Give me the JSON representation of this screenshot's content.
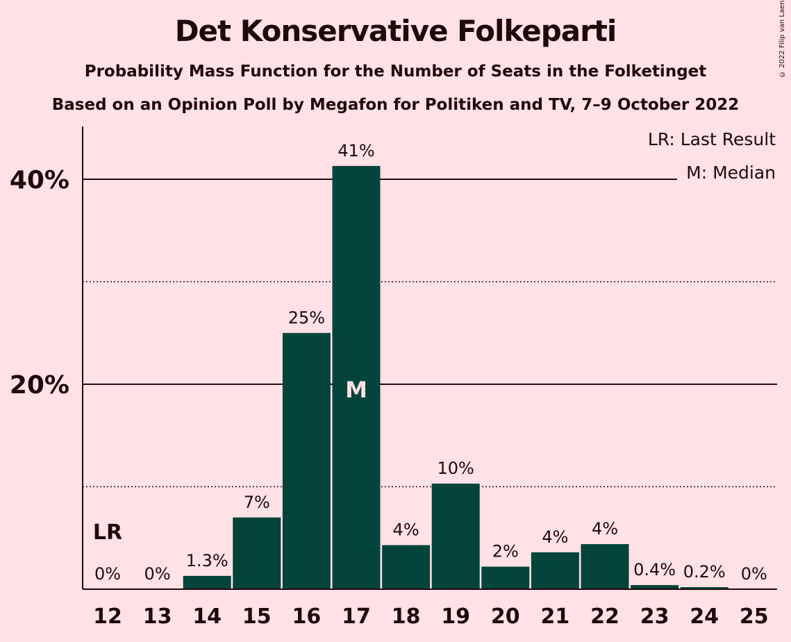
{
  "header": {
    "title": "Det Konservative Folkeparti",
    "subtitle1": "Probability Mass Function for the Number of Seats in the Folketinget",
    "subtitle2": "Based on an Opinion Poll by Megafon for Politiken and TV, 7–9 October 2022",
    "copyright": "© 2022 Filip van Laenen"
  },
  "legend": {
    "last_result": "LR: Last Result",
    "median": "M: Median"
  },
  "colors": {
    "background": "#FFE1E6",
    "bar": "#04443A",
    "text": "#1F0A0A"
  },
  "chart_data": {
    "type": "bar",
    "categories": [
      "12",
      "13",
      "14",
      "15",
      "16",
      "17",
      "18",
      "19",
      "20",
      "21",
      "22",
      "23",
      "24",
      "25"
    ],
    "values": [
      0,
      0,
      1.3,
      7,
      25,
      41.3,
      4.3,
      10.3,
      2.2,
      3.6,
      4.4,
      0.4,
      0.2,
      0
    ],
    "data_labels": [
      "0%",
      "0%",
      "1.3%",
      "7%",
      "25%",
      "41%",
      "4%",
      "10%",
      "2%",
      "4%",
      "4%",
      "0.4%",
      "0.2%",
      "0%"
    ],
    "y_ticks": [
      {
        "value": 20,
        "label": "20%"
      },
      {
        "value": 40,
        "label": "40%"
      }
    ],
    "minor_gridlines": [
      10,
      30
    ],
    "ylim": [
      0,
      45
    ],
    "last_result": {
      "category": "12",
      "label": "LR"
    },
    "median": {
      "category": "17",
      "label": "M"
    },
    "legend_placement": "top-right"
  }
}
